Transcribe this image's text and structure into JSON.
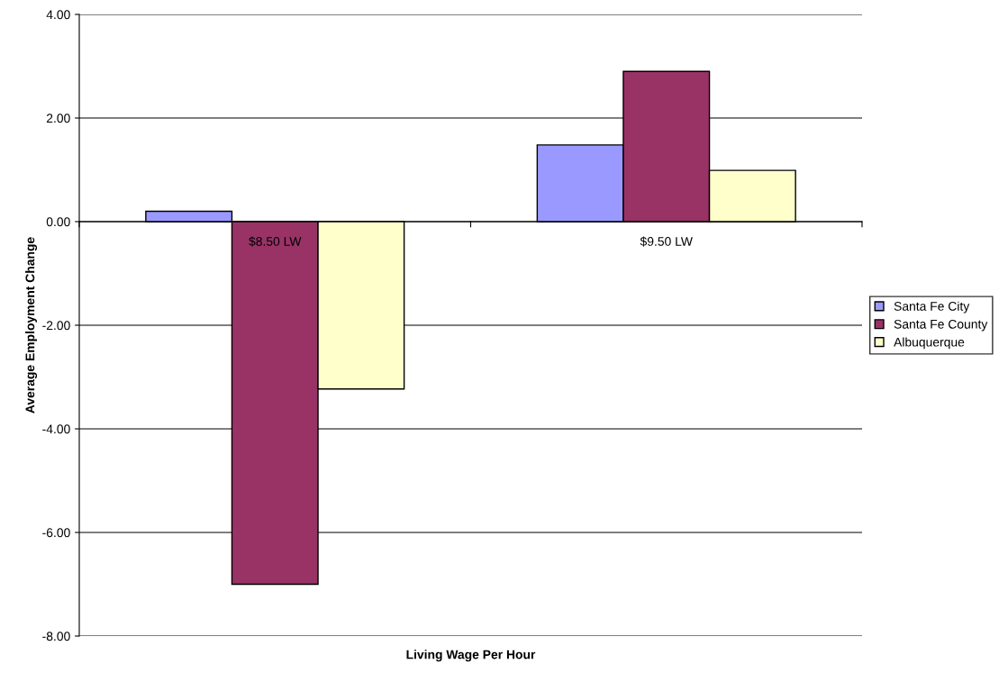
{
  "chart_data": {
    "type": "bar",
    "xlabel": "Living Wage Per Hour",
    "ylabel": "Average Employment Change",
    "categories": [
      "$8.50 LW",
      "$9.50 LW"
    ],
    "series": [
      {
        "name": "Santa Fe City",
        "color": "#9999ff",
        "values": [
          0.2,
          1.48
        ]
      },
      {
        "name": "Santa Fe County",
        "color": "#993366",
        "values": [
          -7.0,
          2.9
        ]
      },
      {
        "name": "Albuquerque",
        "color": "#ffffcc",
        "values": [
          -3.23,
          0.99
        ]
      }
    ],
    "ylim": [
      -8,
      4
    ],
    "yticks": [
      {
        "value": -8,
        "label": "-8.00"
      },
      {
        "value": -6,
        "label": "-6.00"
      },
      {
        "value": -4,
        "label": "-4.00"
      },
      {
        "value": -2,
        "label": "-2.00"
      },
      {
        "value": 0,
        "label": "0.00"
      },
      {
        "value": 2,
        "label": "2.00"
      },
      {
        "value": 4,
        "label": "4.00"
      }
    ],
    "grid": "y",
    "legend": "right"
  }
}
